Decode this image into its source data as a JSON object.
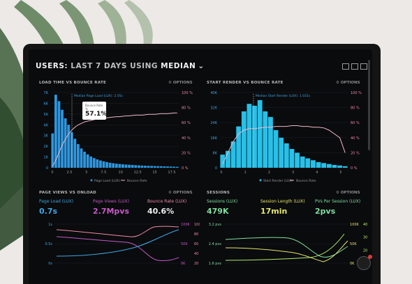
{
  "header": {
    "title_prefix": "USERS: ",
    "title_mid": "LAST 7 DAYS ",
    "title_using": "USING ",
    "title_method": "MEDIAN"
  },
  "panels": {
    "load_time": {
      "title": "LOAD TIME VS BOUNCE RATE",
      "options": "OPTIONS",
      "annotation": "Median Page Load (LUX): 2.05s",
      "tooltip_label": "Bounce Rate",
      "tooltip_sub": "%",
      "tooltip_value": "57.1%",
      "left_ticks": [
        "7K",
        "6K",
        "5K",
        "4K",
        "3K",
        "2K",
        "1K",
        "0"
      ],
      "right_ticks": [
        "100 %",
        "80 %",
        "60 %",
        "40 %",
        "20 %",
        "0 %"
      ],
      "x_ticks": [
        "0",
        "2.5",
        "5",
        "7.5",
        "10",
        "12.5",
        "15",
        "17.5"
      ],
      "legend": [
        "Page Load (LUX)",
        "Bounce Rate"
      ]
    },
    "start_render": {
      "title": "START RENDER VS BOUNCE RATE",
      "options": "OPTIONS",
      "annotation": "Median Start Render (LUX): 1.031s",
      "left_ticks": [
        "40K",
        "32K",
        "24K",
        "16K",
        "8K",
        "0"
      ],
      "right_ticks": [
        "100 %",
        "80 %",
        "60 %",
        "40 %",
        "20 %",
        "0 %"
      ],
      "x_ticks": [
        "0",
        "1",
        "2",
        "3",
        "4",
        "5"
      ],
      "legend": [
        "Start Render (LUX)",
        "Bounce Rate"
      ]
    },
    "page_views": {
      "title": "PAGE VIEWS VS ONLOAD",
      "options": "OPTIONS",
      "metrics": [
        {
          "label": "Page Load (LUX)",
          "value": "0.7s"
        },
        {
          "label": "Page Views (LUX)",
          "value": "2.7Mpvs"
        },
        {
          "label": "Bounce Rate (LUX)",
          "value": "40.6%"
        }
      ],
      "left_ticks": [
        "1s",
        "0.5s",
        "0s"
      ],
      "right_ticks": [
        "100K",
        "50K",
        "0K"
      ],
      "right_ticks2": [
        "100 %",
        "80 %",
        "60 %",
        "40 %",
        "20 %"
      ]
    },
    "sessions": {
      "title": "SESSIONS",
      "options": "OPTIONS",
      "metrics": [
        {
          "label": "Sessions (LUX)",
          "value": "479K"
        },
        {
          "label": "Session Length (LUX)",
          "value": "17min"
        },
        {
          "label": "PVs Per Session (LUX)",
          "value": "2pvs"
        }
      ],
      "left_ticks": [
        "3.2 pvs",
        "2.4 pvs",
        "1.6 pvs"
      ],
      "right_ticks": [
        "100K",
        "50K",
        "0K"
      ],
      "right_ticks2": [
        "40 min",
        "30 min",
        "20 min",
        "10 min"
      ]
    }
  },
  "chart_data": [
    {
      "type": "bar",
      "title": "LOAD TIME VS BOUNCE RATE",
      "values": [
        3.2,
        6.8,
        6.2,
        5.4,
        4.6,
        4.0,
        3.3,
        2.7,
        2.2,
        1.8,
        1.5,
        1.25,
        1.05,
        0.9,
        0.78,
        0.68,
        0.6,
        0.53,
        0.47,
        0.42,
        0.38,
        0.35,
        0.32,
        0.3,
        0.28,
        0.26,
        0.24,
        0.22,
        0.2,
        0.19,
        0.18,
        0.17,
        0.16,
        0.15,
        0.14,
        0.13,
        0.12,
        0.11,
        0.1,
        0.09
      ],
      "ylim": [
        0,
        7
      ],
      "line": [
        2,
        10,
        20,
        30,
        38,
        45,
        50,
        54,
        57,
        59,
        61,
        62,
        63,
        64,
        65,
        65.5,
        66,
        66.5,
        67,
        67.5,
        68,
        68,
        68.5,
        69,
        69,
        69.5,
        70,
        70,
        70,
        70.5,
        71,
        71,
        71,
        71.5,
        72,
        72,
        72,
        72.5,
        73,
        73
      ],
      "line_ylim": [
        0,
        100
      ]
    },
    {
      "type": "bar",
      "title": "START RENDER VS BOUNCE RATE",
      "values": [
        7,
        9,
        14,
        22,
        30,
        34,
        33,
        36,
        30,
        27,
        20,
        16,
        13,
        10,
        8,
        6,
        5,
        4,
        3,
        2.5,
        2,
        1.5,
        1.2,
        0.8
      ],
      "ylim": [
        0,
        40
      ],
      "line": [
        5,
        20,
        35,
        45,
        50,
        52,
        52,
        53,
        54,
        54,
        55,
        55,
        55,
        56,
        56,
        55,
        55,
        54,
        54,
        53,
        50,
        45,
        40,
        20
      ],
      "line_ylim": [
        0,
        100
      ]
    }
  ]
}
